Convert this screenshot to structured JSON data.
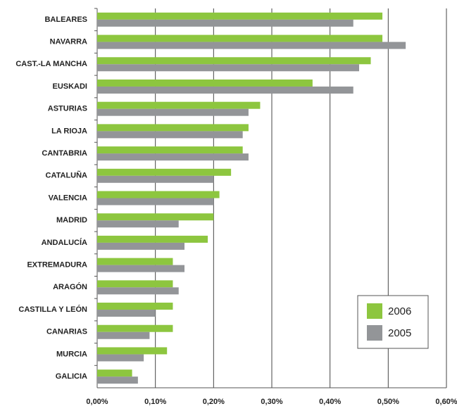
{
  "chart_data": {
    "type": "bar",
    "orientation": "horizontal",
    "categories": [
      "BALEARES",
      "NAVARRA",
      "CAST.-LA MANCHA",
      "EUSKADI",
      "ASTURIAS",
      "LA RIOJA",
      "CANTABRIA",
      "CATALUÑA",
      "VALENCIA",
      "MADRID",
      "ANDALUCÍA",
      "EXTREMADURA",
      "ARAGÓN",
      "CASTILLA Y LEÓN",
      "CANARIAS",
      "MURCIA",
      "GALICIA"
    ],
    "series": [
      {
        "name": "2006",
        "color": "#8dc63f",
        "values": [
          0.49,
          0.49,
          0.47,
          0.37,
          0.28,
          0.26,
          0.25,
          0.23,
          0.21,
          0.2,
          0.19,
          0.13,
          0.13,
          0.13,
          0.13,
          0.12,
          0.06
        ]
      },
      {
        "name": "2005",
        "color": "#939598",
        "values": [
          0.44,
          0.53,
          0.45,
          0.44,
          0.26,
          0.25,
          0.26,
          0.2,
          0.2,
          0.14,
          0.15,
          0.15,
          0.14,
          0.1,
          0.09,
          0.08,
          0.07
        ]
      }
    ],
    "xlim": [
      0,
      0.6
    ],
    "xticks": [
      {
        "value": 0,
        "label": "0,00%"
      },
      {
        "value": 0.1,
        "label": "0,10%"
      },
      {
        "value": 0.2,
        "label": "0,20%"
      },
      {
        "value": 0.3,
        "label": "0,30%"
      },
      {
        "value": 0.4,
        "label": "0,40%"
      },
      {
        "value": 0.5,
        "label": "0,50%"
      },
      {
        "value": 0.6,
        "label": "0,60%"
      }
    ],
    "grid": true,
    "legend": "lower right"
  }
}
